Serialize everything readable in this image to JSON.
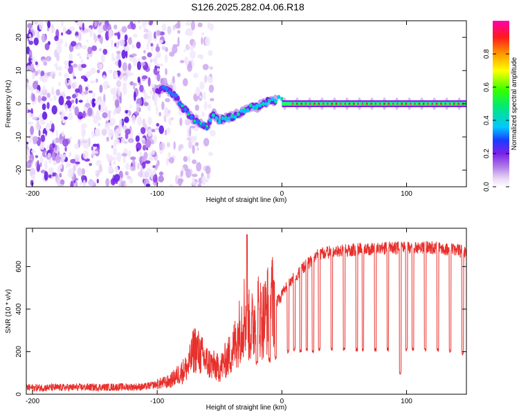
{
  "title": "S126.2025.282.04.06.R18",
  "chart_data": [
    {
      "type": "heatmap",
      "name": "spectrogram",
      "xlabel": "Height of straight line (km)",
      "ylabel": "Frequency (Hz)",
      "xlim": [
        -205,
        148
      ],
      "ylim": [
        -25,
        25
      ],
      "xticks": [
        -200,
        -100,
        0,
        100
      ],
      "xtick_labels": [
        "-200",
        "-100",
        "0",
        "100"
      ],
      "yticks": [
        -20,
        -10,
        0,
        10,
        20
      ],
      "ytick_labels": [
        "-20",
        "-10",
        "0",
        "10",
        "20"
      ],
      "trace": {
        "x": [
          -100,
          -95,
          -90,
          -85,
          -80,
          -75,
          -70,
          -65,
          -60,
          -55,
          -50,
          -45,
          -40,
          -35,
          -30,
          -25,
          -20,
          -15,
          -10,
          -5,
          0,
          10,
          50,
          100,
          148
        ],
        "y": [
          4,
          5,
          4,
          2,
          -1,
          -3,
          -5,
          -6,
          -7,
          -3,
          -5,
          -4,
          -4,
          -3,
          -2,
          -1,
          -1,
          0,
          1,
          1,
          2,
          0,
          0,
          0,
          0
        ]
      },
      "colorbar": {
        "label": "Normalized spectral amplitude",
        "range": [
          0,
          1
        ],
        "ticks": [
          0.0,
          0.2,
          0.4,
          0.6,
          0.8
        ],
        "tick_labels": [
          "0.0",
          "0.2",
          "0.4",
          "0.6",
          "0.8"
        ]
      }
    },
    {
      "type": "line",
      "name": "snr",
      "xlabel": "Height of straight line (km)",
      "ylabel": "SNR (10 * v/v)",
      "xlim": [
        -205,
        148
      ],
      "ylim": [
        0,
        780
      ],
      "xticks": [
        -200,
        -100,
        0,
        100
      ],
      "xtick_labels": [
        "-200",
        "-100",
        "0",
        "100"
      ],
      "yticks": [
        0,
        200,
        400,
        600
      ],
      "ytick_labels": [
        "0",
        "200",
        "400",
        "600"
      ],
      "color": "#e8302c",
      "envelope": {
        "x": [
          -205,
          -110,
          -90,
          -75,
          -70,
          -60,
          -50,
          -40,
          -35,
          -30,
          -25,
          -20,
          -15,
          -10,
          -5,
          0,
          10,
          20,
          30,
          40,
          60,
          80,
          100,
          120,
          148
        ],
        "y": [
          30,
          35,
          60,
          130,
          220,
          150,
          120,
          200,
          280,
          380,
          300,
          380,
          350,
          420,
          450,
          500,
          580,
          640,
          690,
          700,
          710,
          715,
          720,
          720,
          700
        ]
      },
      "dips": {
        "x": [
          -20,
          -10,
          -5,
          5,
          10,
          15,
          20,
          25,
          30,
          40,
          50,
          60,
          65,
          75,
          85,
          95,
          100,
          105,
          115,
          125,
          135,
          145
        ],
        "y": [
          140,
          150,
          160,
          190,
          200,
          195,
          200,
          195,
          200,
          200,
          200,
          200,
          195,
          200,
          200,
          90,
          200,
          200,
          200,
          200,
          195,
          185
        ]
      }
    }
  ]
}
